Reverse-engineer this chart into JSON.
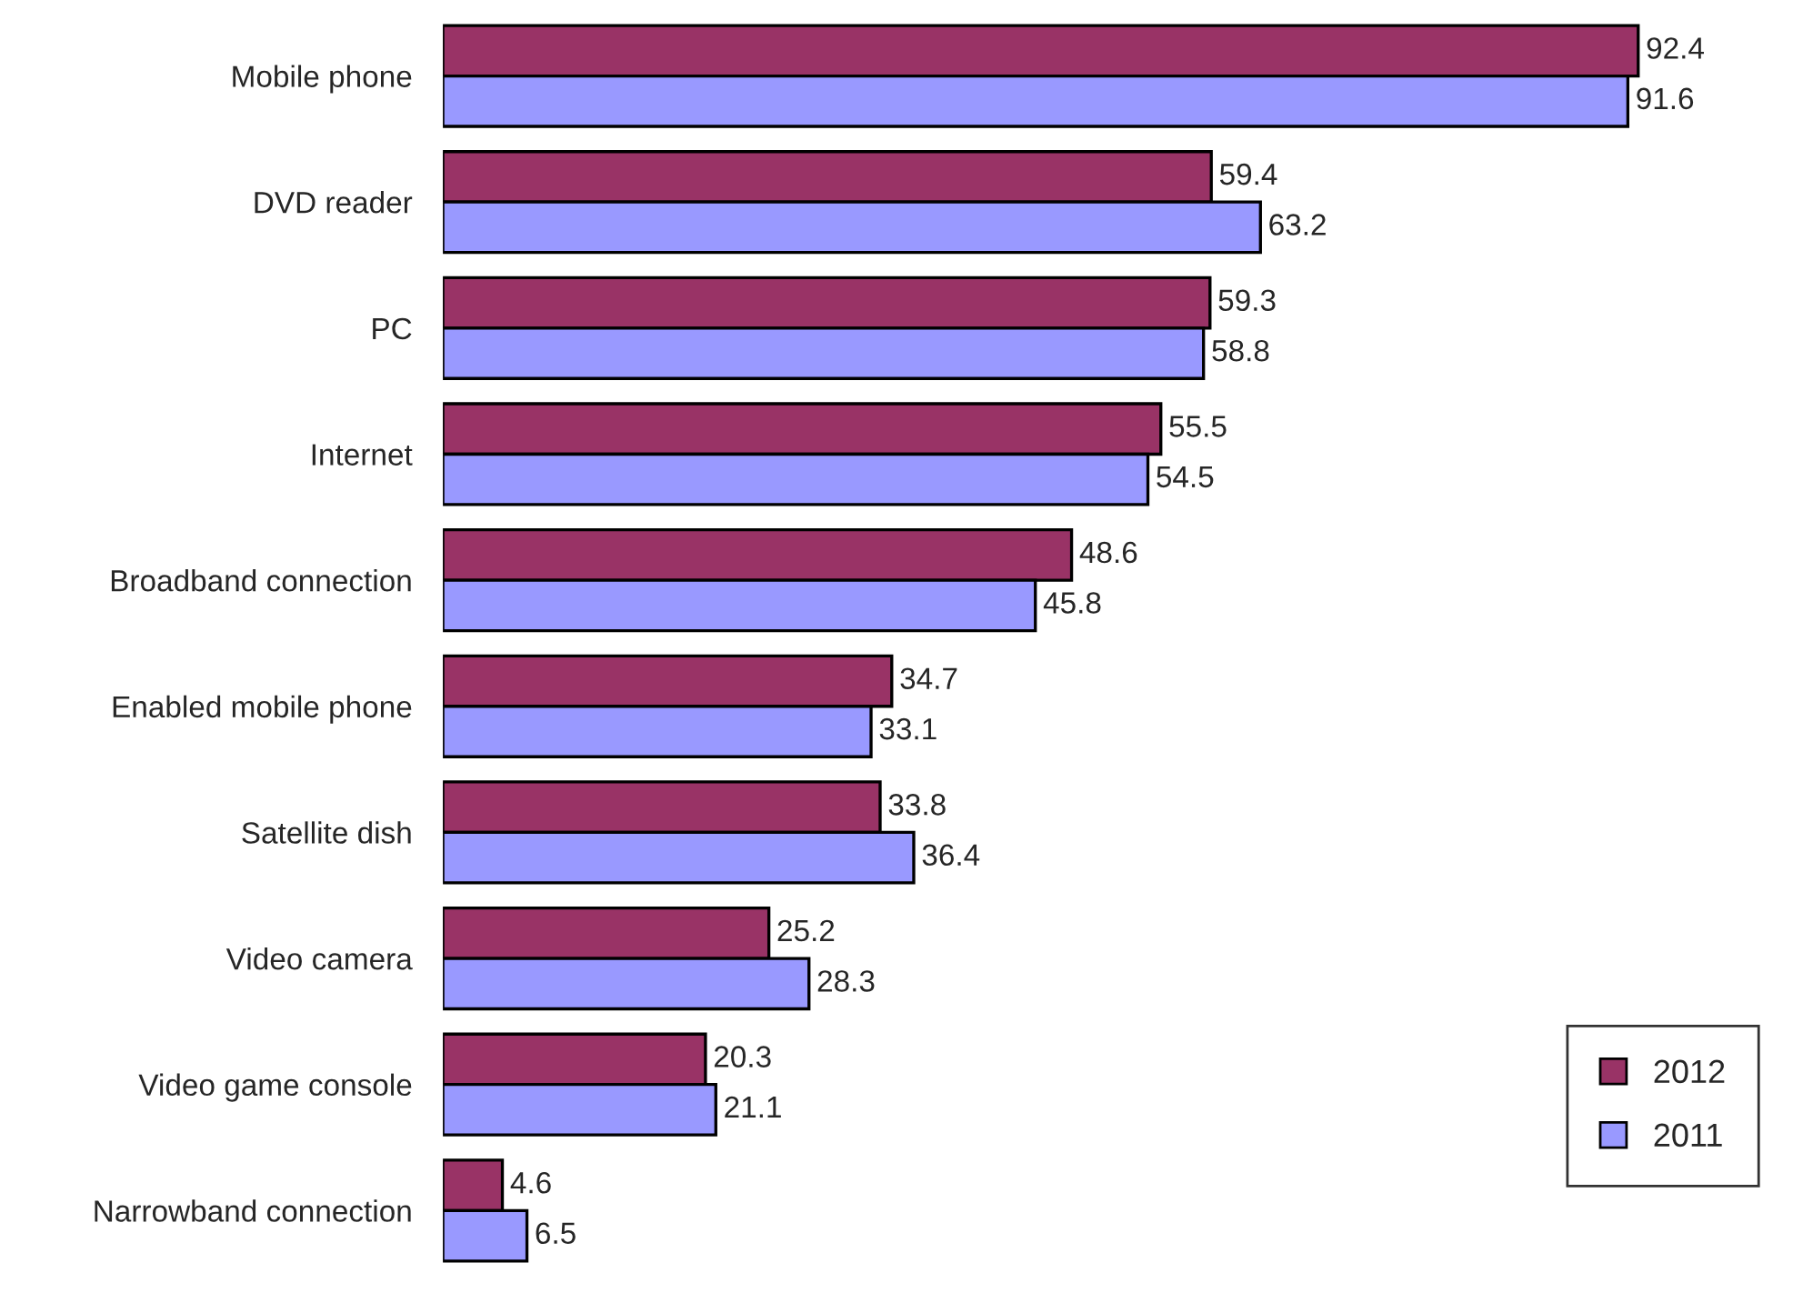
{
  "chart_data": {
    "type": "bar",
    "orientation": "horizontal",
    "categories": [
      "Mobile phone",
      "DVD reader",
      "PC",
      "Internet",
      "Broadband connection",
      "Enabled mobile phone",
      "Satellite dish",
      "Video camera",
      "Video game console",
      "Narrowband connection"
    ],
    "series": [
      {
        "name": "2012",
        "color": "#993366",
        "values": [
          92.4,
          59.4,
          59.3,
          55.5,
          48.6,
          34.7,
          33.8,
          25.2,
          20.3,
          4.6
        ]
      },
      {
        "name": "2011",
        "color": "#9999ff",
        "values": [
          91.6,
          63.2,
          58.8,
          54.5,
          45.8,
          33.1,
          36.4,
          28.3,
          21.1,
          6.5
        ]
      }
    ],
    "data_labels": true,
    "legend": "bottom right",
    "grid": false,
    "tick_labels": "y"
  }
}
